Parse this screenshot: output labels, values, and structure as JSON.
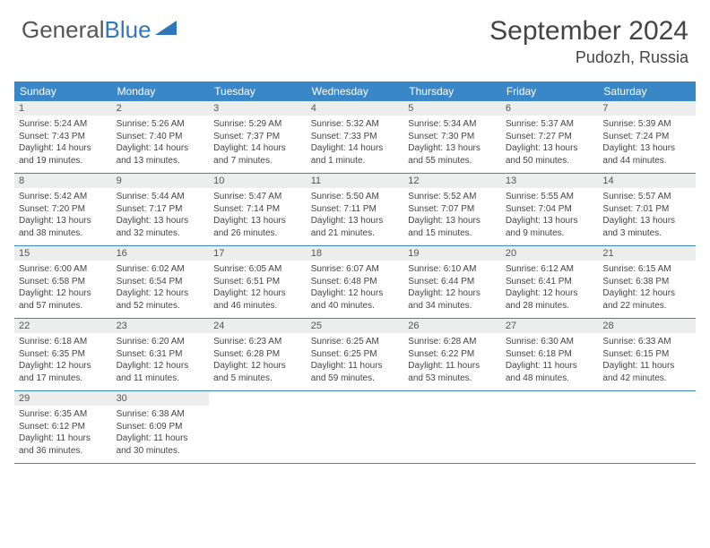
{
  "logo": {
    "part1": "General",
    "part2": "Blue"
  },
  "title": "September 2024",
  "location": "Pudozh, Russia",
  "header_color": "#3a87c7",
  "day_header_bg": "#eceded",
  "weekdays": [
    "Sunday",
    "Monday",
    "Tuesday",
    "Wednesday",
    "Thursday",
    "Friday",
    "Saturday"
  ],
  "days": [
    {
      "n": "1",
      "sr": "5:24 AM",
      "ss": "7:43 PM",
      "dl": "14 hours and 19 minutes."
    },
    {
      "n": "2",
      "sr": "5:26 AM",
      "ss": "7:40 PM",
      "dl": "14 hours and 13 minutes."
    },
    {
      "n": "3",
      "sr": "5:29 AM",
      "ss": "7:37 PM",
      "dl": "14 hours and 7 minutes."
    },
    {
      "n": "4",
      "sr": "5:32 AM",
      "ss": "7:33 PM",
      "dl": "14 hours and 1 minute."
    },
    {
      "n": "5",
      "sr": "5:34 AM",
      "ss": "7:30 PM",
      "dl": "13 hours and 55 minutes."
    },
    {
      "n": "6",
      "sr": "5:37 AM",
      "ss": "7:27 PM",
      "dl": "13 hours and 50 minutes."
    },
    {
      "n": "7",
      "sr": "5:39 AM",
      "ss": "7:24 PM",
      "dl": "13 hours and 44 minutes."
    },
    {
      "n": "8",
      "sr": "5:42 AM",
      "ss": "7:20 PM",
      "dl": "13 hours and 38 minutes."
    },
    {
      "n": "9",
      "sr": "5:44 AM",
      "ss": "7:17 PM",
      "dl": "13 hours and 32 minutes."
    },
    {
      "n": "10",
      "sr": "5:47 AM",
      "ss": "7:14 PM",
      "dl": "13 hours and 26 minutes."
    },
    {
      "n": "11",
      "sr": "5:50 AM",
      "ss": "7:11 PM",
      "dl": "13 hours and 21 minutes."
    },
    {
      "n": "12",
      "sr": "5:52 AM",
      "ss": "7:07 PM",
      "dl": "13 hours and 15 minutes."
    },
    {
      "n": "13",
      "sr": "5:55 AM",
      "ss": "7:04 PM",
      "dl": "13 hours and 9 minutes."
    },
    {
      "n": "14",
      "sr": "5:57 AM",
      "ss": "7:01 PM",
      "dl": "13 hours and 3 minutes."
    },
    {
      "n": "15",
      "sr": "6:00 AM",
      "ss": "6:58 PM",
      "dl": "12 hours and 57 minutes."
    },
    {
      "n": "16",
      "sr": "6:02 AM",
      "ss": "6:54 PM",
      "dl": "12 hours and 52 minutes."
    },
    {
      "n": "17",
      "sr": "6:05 AM",
      "ss": "6:51 PM",
      "dl": "12 hours and 46 minutes."
    },
    {
      "n": "18",
      "sr": "6:07 AM",
      "ss": "6:48 PM",
      "dl": "12 hours and 40 minutes."
    },
    {
      "n": "19",
      "sr": "6:10 AM",
      "ss": "6:44 PM",
      "dl": "12 hours and 34 minutes."
    },
    {
      "n": "20",
      "sr": "6:12 AM",
      "ss": "6:41 PM",
      "dl": "12 hours and 28 minutes."
    },
    {
      "n": "21",
      "sr": "6:15 AM",
      "ss": "6:38 PM",
      "dl": "12 hours and 22 minutes."
    },
    {
      "n": "22",
      "sr": "6:18 AM",
      "ss": "6:35 PM",
      "dl": "12 hours and 17 minutes."
    },
    {
      "n": "23",
      "sr": "6:20 AM",
      "ss": "6:31 PM",
      "dl": "12 hours and 11 minutes."
    },
    {
      "n": "24",
      "sr": "6:23 AM",
      "ss": "6:28 PM",
      "dl": "12 hours and 5 minutes."
    },
    {
      "n": "25",
      "sr": "6:25 AM",
      "ss": "6:25 PM",
      "dl": "11 hours and 59 minutes."
    },
    {
      "n": "26",
      "sr": "6:28 AM",
      "ss": "6:22 PM",
      "dl": "11 hours and 53 minutes."
    },
    {
      "n": "27",
      "sr": "6:30 AM",
      "ss": "6:18 PM",
      "dl": "11 hours and 48 minutes."
    },
    {
      "n": "28",
      "sr": "6:33 AM",
      "ss": "6:15 PM",
      "dl": "11 hours and 42 minutes."
    },
    {
      "n": "29",
      "sr": "6:35 AM",
      "ss": "6:12 PM",
      "dl": "11 hours and 36 minutes."
    },
    {
      "n": "30",
      "sr": "6:38 AM",
      "ss": "6:09 PM",
      "dl": "11 hours and 30 minutes."
    }
  ],
  "labels": {
    "sunrise": "Sunrise:",
    "sunset": "Sunset:",
    "daylight": "Daylight:"
  }
}
